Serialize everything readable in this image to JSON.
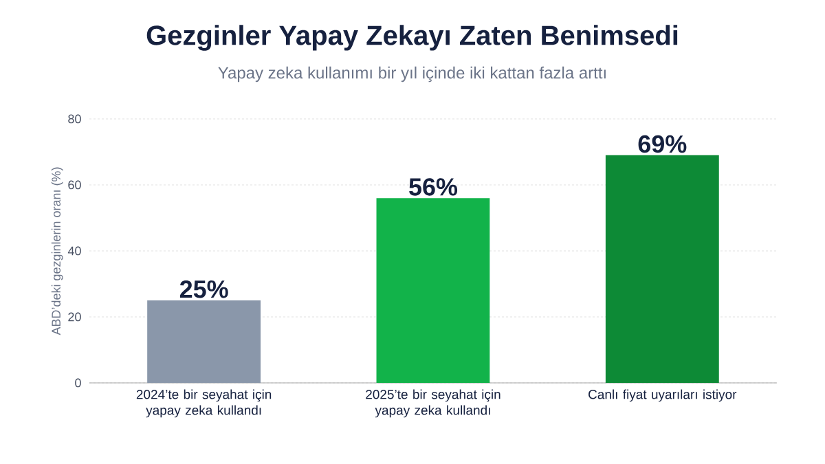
{
  "chart_data": {
    "type": "bar",
    "title": "Gezginler Yapay Zekayı Zaten Benimsedi",
    "subtitle": "Yapay zeka kullanımı bir yıl içinde iki kattan fazla arttı",
    "ylabel": "ABD’deki gezginlerin oranı (%)",
    "categories": [
      "2024’te bir seyahat için yapay zeka kullandı",
      "2025’te bir seyahat için yapay zeka kullandı",
      "Canlı fiyat uyarıları istiyor"
    ],
    "values": [
      25,
      56,
      69
    ],
    "colors": [
      "#8a97aa",
      "#12b34a",
      "#0d8a36"
    ],
    "value_labels": [
      "25%",
      "56%",
      "69%"
    ],
    "ylim": [
      0,
      80
    ],
    "yticks": [
      0,
      20,
      40,
      60,
      80
    ],
    "grid": "y"
  }
}
